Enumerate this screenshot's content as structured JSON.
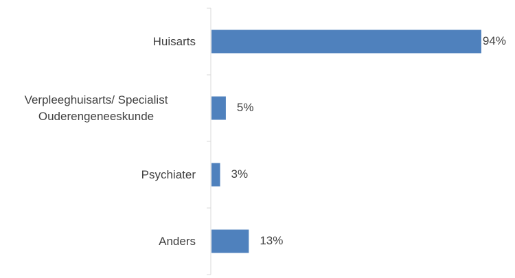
{
  "chart_data": {
    "type": "bar",
    "orientation": "horizontal",
    "categories": [
      "Huisarts",
      "Verpleeghuisarts/ Specialist Ouderengeneeskunde",
      "Psychiater",
      "Anders"
    ],
    "values": [
      94,
      5,
      3,
      13
    ],
    "value_labels": [
      "94%",
      "5%",
      "3%",
      "13%"
    ],
    "color": "#4f81bd"
  }
}
